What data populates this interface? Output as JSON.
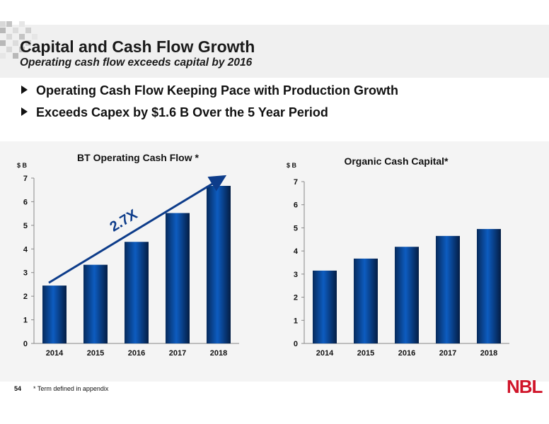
{
  "header": {
    "title": "Capital and Cash Flow Growth",
    "subtitle": "Operating cash flow exceeds capital by 2016"
  },
  "bullets": [
    "Operating Cash Flow Keeping Pace with Production Growth",
    "Exceeds Capex by $1.6 B Over the 5 Year Period"
  ],
  "footer": {
    "page_number": "54",
    "footnote": "* Term defined in appendix",
    "logo": "NBL"
  },
  "colors": {
    "bar_fill": "#0d4fa3",
    "bar_dark": "#062a5c",
    "text": "#111111",
    "logo": "#d0152a"
  },
  "chart_data": [
    {
      "type": "bar",
      "title": "BT Operating Cash Flow *",
      "ylabel": "$ B",
      "categories": [
        "2014",
        "2015",
        "2016",
        "2017",
        "2018"
      ],
      "values": [
        2.45,
        3.33,
        4.3,
        5.52,
        6.67
      ],
      "ylim": [
        0,
        7
      ],
      "yticks": [
        "0",
        "1",
        "2",
        "3",
        "4",
        "5",
        "6",
        "7"
      ],
      "annotation": "2.7X",
      "grid": false
    },
    {
      "type": "bar",
      "title": "Organic Cash Capital*",
      "ylabel": "$ B",
      "categories": [
        "2014",
        "2015",
        "2016",
        "2017",
        "2018"
      ],
      "values": [
        3.15,
        3.67,
        4.18,
        4.65,
        4.95
      ],
      "ylim": [
        0,
        7
      ],
      "yticks": [
        "0",
        "1",
        "2",
        "3",
        "4",
        "5",
        "6",
        "7"
      ],
      "grid": false
    }
  ]
}
